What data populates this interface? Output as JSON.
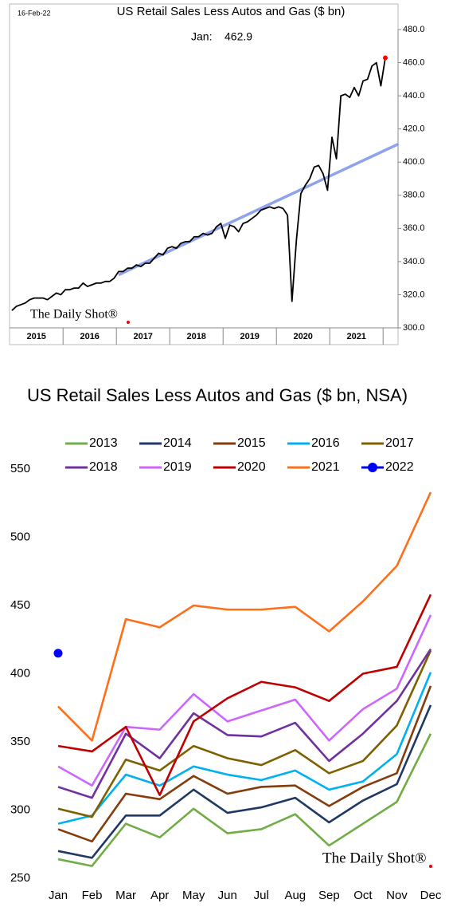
{
  "chart_data": [
    {
      "type": "line",
      "title": "US Retail Sales Less Autos and Gas ($ bn)",
      "date_note": "16-Feb-22",
      "annotation": "Jan:    462.9",
      "watermark": "The Daily Shot®",
      "x_tick_labels": [
        "2015",
        "2016",
        "2017",
        "2018",
        "2019",
        "2020",
        "2021"
      ],
      "color": "#000000",
      "values": [
        310.5,
        313,
        314,
        315,
        317,
        318,
        318,
        318,
        317,
        319,
        321,
        320,
        323,
        323,
        324,
        324,
        327,
        325,
        326,
        327,
        327,
        328,
        328,
        330,
        334,
        334,
        336,
        336,
        338,
        337,
        339,
        339,
        342,
        345,
        344,
        348,
        349,
        348,
        351,
        352,
        352,
        355,
        355,
        357,
        356,
        357,
        361,
        363,
        354,
        362,
        361,
        358,
        363,
        364,
        366,
        368,
        371,
        372,
        373,
        372,
        373,
        372,
        368,
        316,
        353,
        381,
        386,
        390,
        397,
        398,
        393,
        383,
        415,
        402,
        440,
        441,
        439,
        445,
        440,
        449,
        450,
        458,
        460,
        446,
        462.9
      ],
      "last_point_color": "#ff0000",
      "trend": {
        "color": "#8fa2ec",
        "values": [
          332,
          411
        ]
      },
      "y_axis_side": "right",
      "ylim": [
        300,
        480
      ],
      "yticks": [
        {
          "value": 300,
          "label": "300.0"
        },
        {
          "value": 320,
          "label": "320.0"
        },
        {
          "value": 340,
          "label": "340.0"
        },
        {
          "value": 360,
          "label": "360.0"
        },
        {
          "value": 380,
          "label": "380.0"
        },
        {
          "value": 400,
          "label": "400.0"
        },
        {
          "value": 420,
          "label": "420.0"
        },
        {
          "value": 440,
          "label": "440.0"
        },
        {
          "value": 460,
          "label": "460.0"
        },
        {
          "value": 480,
          "label": "480.0"
        }
      ],
      "grid": false
    },
    {
      "type": "line",
      "title": "US Retail Sales Less Autos and Gas ($ bn, NSA)",
      "watermark": "The Daily Shot®",
      "categories": [
        "Jan",
        "Feb",
        "Mar",
        "Apr",
        "May",
        "Jun",
        "Jul",
        "Aug",
        "Sep",
        "Oct",
        "Nov",
        "Dec"
      ],
      "series": [
        {
          "name": "2013",
          "color": "#70ad47",
          "values": [
            264,
            259,
            290,
            280,
            301,
            283,
            286,
            297,
            274,
            290,
            306,
            356
          ]
        },
        {
          "name": "2014",
          "color": "#1f3864",
          "values": [
            270,
            265,
            296,
            296,
            315,
            298,
            302,
            309,
            291,
            307,
            319,
            377
          ]
        },
        {
          "name": "2015",
          "color": "#843c0c",
          "values": [
            286,
            277,
            312,
            308,
            325,
            312,
            317,
            318,
            303,
            317,
            327,
            391
          ]
        },
        {
          "name": "2016",
          "color": "#00b0f0",
          "values": [
            290,
            296,
            326,
            318,
            332,
            326,
            322,
            329,
            315,
            321,
            341,
            401
          ]
        },
        {
          "name": "2017",
          "color": "#7f6000",
          "values": [
            301,
            295,
            337,
            329,
            347,
            338,
            333,
            344,
            327,
            336,
            362,
            417
          ]
        },
        {
          "name": "2018",
          "color": "#7030a0",
          "values": [
            317,
            309,
            356,
            338,
            371,
            355,
            354,
            364,
            336,
            356,
            380,
            418
          ]
        },
        {
          "name": "2019",
          "color": "#cc66ff",
          "values": [
            332,
            318,
            361,
            359,
            385,
            365,
            373,
            381,
            351,
            374,
            389,
            443
          ]
        },
        {
          "name": "2020",
          "color": "#c00000",
          "values": [
            347,
            343,
            361,
            311,
            365,
            382,
            394,
            390,
            380,
            400,
            405,
            458
          ]
        },
        {
          "name": "2021",
          "color": "#ff6f1a",
          "values": [
            376,
            351,
            440,
            434,
            450,
            447,
            447,
            449,
            431,
            453,
            479,
            533
          ]
        },
        {
          "name": "2022",
          "color": "#0000ff",
          "marker": true,
          "values": [
            415,
            null,
            null,
            null,
            null,
            null,
            null,
            null,
            null,
            null,
            null,
            null
          ]
        }
      ],
      "y_axis_side": "left",
      "ylim": [
        250,
        550
      ],
      "yticks": [
        250,
        300,
        350,
        400,
        450,
        500,
        550
      ],
      "grid": false
    }
  ]
}
